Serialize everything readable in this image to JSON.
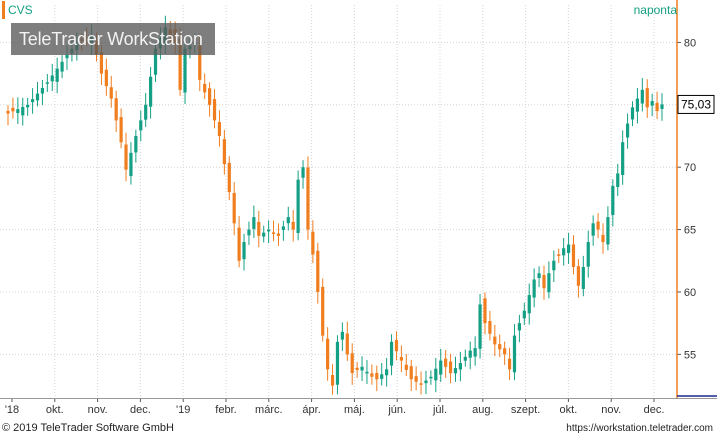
{
  "header": {
    "ticker": "CVS",
    "period": "naponta",
    "logo_text": "TeleTrader WorkStation"
  },
  "footer": {
    "copyright": "© 2019 TeleTrader Software GmbH",
    "url": "https://workstation.teletrader.com"
  },
  "colors": {
    "up": "#14a085",
    "down": "#f07d1e",
    "accent_line": "#1b2a8c",
    "grid": "#d4d4d4"
  },
  "chart_data": {
    "type": "candlestick",
    "ylim": [
      51.5,
      83
    ],
    "y_ticks": [
      55,
      60,
      65,
      70,
      75,
      80
    ],
    "x_labels": [
      "'18",
      "okt.",
      "nov.",
      "dec.",
      "'19",
      "febr.",
      "márc.",
      "ápr.",
      "máj.",
      "jún.",
      "júl.",
      "aug.",
      "szept.",
      "okt.",
      "nov.",
      "dec."
    ],
    "last_price": "75,03",
    "close_path": [
      [
        0,
        74.3
      ],
      [
        4,
        75.0
      ],
      [
        8,
        76.8
      ],
      [
        12,
        79.0
      ],
      [
        14,
        80.0
      ],
      [
        17,
        80.5
      ],
      [
        19,
        77.5
      ],
      [
        21,
        75.5
      ],
      [
        23,
        72.0
      ],
      [
        24,
        69.8
      ],
      [
        26,
        72.5
      ],
      [
        28,
        75.0
      ],
      [
        30,
        79.5
      ],
      [
        32,
        81.2
      ],
      [
        34,
        80.0
      ],
      [
        35,
        76.2
      ],
      [
        36,
        79.5
      ],
      [
        38,
        80.0
      ],
      [
        39,
        77.0
      ],
      [
        41,
        75.0
      ],
      [
        43,
        72.5
      ],
      [
        45,
        68.0
      ],
      [
        46,
        65.5
      ],
      [
        47,
        62.5
      ],
      [
        48,
        64.0
      ],
      [
        50,
        66.0
      ],
      [
        51,
        64.5
      ],
      [
        53,
        65.0
      ],
      [
        55,
        64.5
      ],
      [
        57,
        66.0
      ],
      [
        58,
        65.0
      ],
      [
        59,
        69.0
      ],
      [
        60,
        70.0
      ],
      [
        61,
        65.0
      ],
      [
        62,
        63.0
      ],
      [
        63,
        60.0
      ],
      [
        64,
        56.5
      ],
      [
        65,
        53.8
      ],
      [
        66,
        52.5
      ],
      [
        67,
        56.0
      ],
      [
        68,
        56.8
      ],
      [
        69,
        55.0
      ],
      [
        70,
        53.5
      ],
      [
        72,
        54.0
      ],
      [
        74,
        53.2
      ],
      [
        75,
        53.0
      ],
      [
        77,
        53.8
      ],
      [
        78,
        56.0
      ],
      [
        80,
        54.5
      ],
      [
        82,
        53.0
      ],
      [
        84,
        52.6
      ],
      [
        86,
        53.2
      ],
      [
        88,
        54.5
      ],
      [
        90,
        53.5
      ],
      [
        92,
        54.3
      ],
      [
        94,
        55.3
      ],
      [
        95,
        55.5
      ],
      [
        96,
        59.0
      ],
      [
        97,
        57.5
      ],
      [
        99,
        55.8
      ],
      [
        101,
        55.0
      ],
      [
        102,
        53.8
      ],
      [
        103,
        56.5
      ],
      [
        105,
        58.5
      ],
      [
        107,
        61.0
      ],
      [
        108,
        61.5
      ],
      [
        109,
        60.3
      ],
      [
        110,
        61.5
      ],
      [
        111,
        62.5
      ],
      [
        113,
        63.5
      ],
      [
        114,
        63.8
      ],
      [
        115,
        62.0
      ],
      [
        116,
        60.5
      ],
      [
        117,
        62.0
      ],
      [
        118,
        64.0
      ],
      [
        119,
        65.5
      ],
      [
        120,
        65.0
      ],
      [
        121,
        64.0
      ],
      [
        122,
        66.0
      ],
      [
        123,
        68.5
      ],
      [
        124,
        69.5
      ],
      [
        125,
        72.0
      ],
      [
        126,
        73.5
      ],
      [
        127,
        74.8
      ],
      [
        128,
        75.5
      ],
      [
        129,
        76.2
      ],
      [
        130,
        74.8
      ],
      [
        131,
        75.3
      ],
      [
        132,
        74.5
      ],
      [
        133,
        75.03
      ]
    ]
  }
}
